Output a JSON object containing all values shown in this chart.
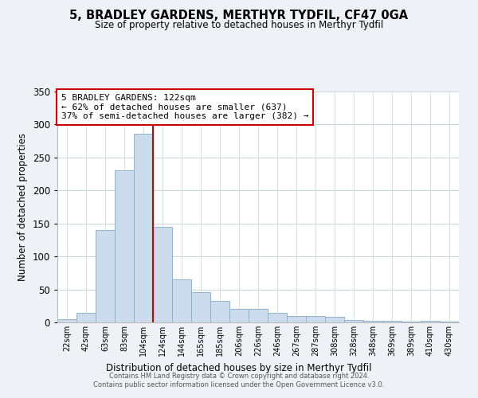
{
  "title": "5, BRADLEY GARDENS, MERTHYR TYDFIL, CF47 0GA",
  "subtitle": "Size of property relative to detached houses in Merthyr Tydfil",
  "xlabel": "Distribution of detached houses by size in Merthyr Tydfil",
  "ylabel": "Number of detached properties",
  "bar_color": "#ccdcec",
  "bar_edge_color": "#90b4cc",
  "categories": [
    "22sqm",
    "42sqm",
    "63sqm",
    "83sqm",
    "104sqm",
    "124sqm",
    "144sqm",
    "165sqm",
    "185sqm",
    "206sqm",
    "226sqm",
    "246sqm",
    "267sqm",
    "287sqm",
    "308sqm",
    "328sqm",
    "348sqm",
    "369sqm",
    "389sqm",
    "410sqm",
    "430sqm"
  ],
  "values": [
    5,
    14,
    140,
    231,
    286,
    145,
    65,
    46,
    32,
    21,
    21,
    14,
    10,
    10,
    9,
    4,
    2,
    3,
    1,
    2,
    1
  ],
  "ylim": [
    0,
    350
  ],
  "yticks": [
    0,
    50,
    100,
    150,
    200,
    250,
    300,
    350
  ],
  "vline_color": "#cc0000",
  "annotation_title": "5 BRADLEY GARDENS: 122sqm",
  "annotation_line1": "← 62% of detached houses are smaller (637)",
  "annotation_line2": "37% of semi-detached houses are larger (382) →",
  "annotation_box_color": "#ffffff",
  "annotation_box_edge": "#cc0000",
  "footer1": "Contains HM Land Registry data © Crown copyright and database right 2024.",
  "footer2": "Contains public sector information licensed under the Open Government Licence v3.0.",
  "plot_background": "#ffffff",
  "fig_background": "#eef2f6",
  "grid_color": "#c8d4e0"
}
